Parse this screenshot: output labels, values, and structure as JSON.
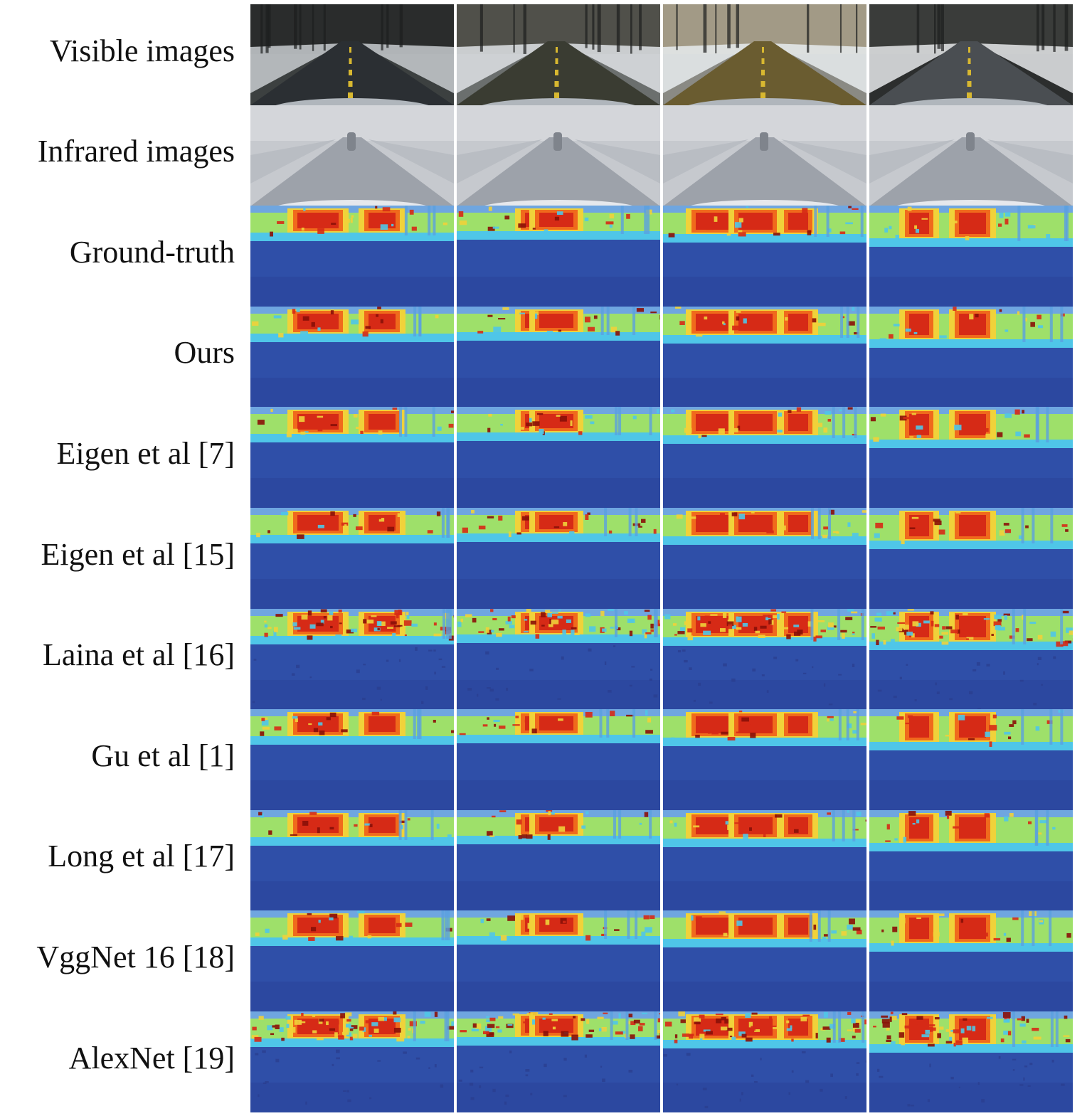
{
  "figure": {
    "rows": [
      {
        "label": "Visible images",
        "kind": "visible"
      },
      {
        "label": "Infrared images",
        "kind": "infrared"
      },
      {
        "label": "Ground-truth",
        "kind": "depth"
      },
      {
        "label": "Ours",
        "kind": "depth"
      },
      {
        "label": "Eigen et al [7]",
        "kind": "depth"
      },
      {
        "label": "Eigen et al [15]",
        "kind": "depth"
      },
      {
        "label": "Laina et al [16]",
        "kind": "depth-noisy"
      },
      {
        "label": "Gu et al [1]",
        "kind": "depth"
      },
      {
        "label": "Long et al [17]",
        "kind": "depth"
      },
      {
        "label": "VggNet 16 [18]",
        "kind": "depth"
      },
      {
        "label": "AlexNet [19]",
        "kind": "depth-noisy"
      }
    ],
    "columns": 4
  },
  "colors": {
    "depth_far": "#2f4fa8",
    "depth_near": "#3a66c4",
    "depth_cyan": "#4fc6e8",
    "depth_green": "#9ee06a",
    "depth_yellow": "#f0d23a",
    "depth_orange": "#f06a1c",
    "depth_red": "#d62a16",
    "depth_darkred": "#8a1008"
  }
}
